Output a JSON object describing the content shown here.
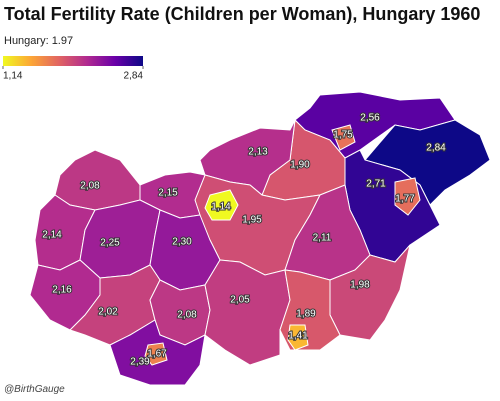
{
  "header": {
    "title": "Total Fertility Rate (Children per Woman), Hungary 1960",
    "subtitle": "Hungary: 1.97"
  },
  "legend": {
    "min": {
      "value": 1.14,
      "label": "1,14"
    },
    "max": {
      "value": 2.84,
      "label": "2,84"
    },
    "colorscale": [
      "#f0f921",
      "#fca636",
      "#e16462",
      "#b12a90",
      "#6a00a8",
      "#0d0887"
    ]
  },
  "regions": [
    {
      "value": 2.56,
      "label": "2,56"
    },
    {
      "value": 2.84,
      "label": "2,84"
    },
    {
      "value": 2.71,
      "label": "2,71"
    },
    {
      "value": 1.9,
      "label": "1,90"
    },
    {
      "value": 2.13,
      "label": "2,13"
    },
    {
      "value": 1.95,
      "label": "1,95"
    },
    {
      "value": 2.11,
      "label": "2,11"
    },
    {
      "value": 2.08,
      "label": "2,08"
    },
    {
      "value": 2.15,
      "label": "2,15"
    },
    {
      "value": 2.14,
      "label": "2,14"
    },
    {
      "value": 2.25,
      "label": "2,25"
    },
    {
      "value": 2.3,
      "label": "2,30"
    },
    {
      "value": 2.16,
      "label": "2,16"
    },
    {
      "value": 2.02,
      "label": "2,02"
    },
    {
      "value": 2.08,
      "label": "2,08"
    },
    {
      "value": 2.05,
      "label": "2,05"
    },
    {
      "value": 1.98,
      "label": "1,98"
    },
    {
      "value": 1.89,
      "label": "1,89"
    },
    {
      "value": 2.39,
      "label": "2,39"
    },
    {
      "value": 1.14,
      "label": "1,14"
    },
    {
      "value": 1.75,
      "label": "1,75"
    },
    {
      "value": 1.77,
      "label": "1,77"
    },
    {
      "value": 1.41,
      "label": "1,41"
    },
    {
      "value": 1.67,
      "label": "1,67"
    }
  ],
  "credit": "@BirthGauge"
}
